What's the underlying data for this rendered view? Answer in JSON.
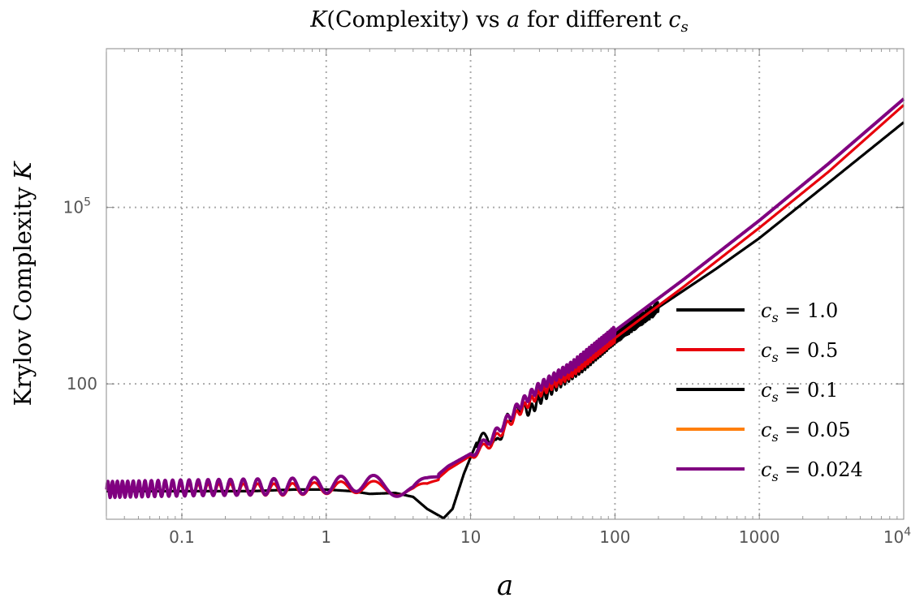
{
  "chart_data": {
    "type": "line",
    "title": {
      "main": "K",
      "paren": "(Complexity) vs ",
      "var": "a",
      "rest": " for different ",
      "sym": "c",
      "sub": "s"
    },
    "xlabel": "a",
    "ylabel": {
      "text": "Krylov Complexity ",
      "sym": "K"
    },
    "x_scale": "log",
    "y_scale": "log",
    "xlim": [
      0.03,
      10000
    ],
    "ylim": [
      0.5,
      50000000
    ],
    "x_ticks": [
      {
        "value": 0.1,
        "label": "0.1"
      },
      {
        "value": 1,
        "label": "1"
      },
      {
        "value": 10,
        "label": "10"
      },
      {
        "value": 100,
        "label": "100"
      },
      {
        "value": 1000,
        "label": "1000"
      },
      {
        "value": 10000,
        "label": "10",
        "sup": "4"
      }
    ],
    "y_ticks": [
      {
        "value": 100,
        "label": "100"
      },
      {
        "value": 100000,
        "label": "10",
        "sup": "5"
      }
    ],
    "grid": true,
    "legend_position": "right",
    "series": [
      {
        "name": "c_s = 1.0",
        "label_sym": "c",
        "label_sub": "s",
        "label_val": " = 1.0",
        "color": "#000000",
        "points": [
          [
            0.03,
            1.5
          ],
          [
            0.1,
            1.5
          ],
          [
            0.3,
            1.5
          ],
          [
            0.6,
            1.6
          ],
          [
            1.0,
            1.6
          ],
          [
            1.5,
            1.5
          ],
          [
            2.0,
            1.35
          ],
          [
            3.0,
            1.4
          ],
          [
            4.0,
            1.2
          ],
          [
            5.0,
            0.75
          ],
          [
            6.5,
            0.52
          ],
          [
            7.5,
            0.75
          ],
          [
            9.0,
            3.0
          ],
          [
            11.0,
            10.0
          ],
          [
            13.0,
            13.0
          ],
          [
            15.0,
            9.0
          ],
          [
            18.0,
            25.0
          ],
          [
            22.0,
            40.0
          ],
          [
            26.0,
            35.0
          ],
          [
            30.0,
            55.0
          ],
          [
            40.0,
            100.0
          ],
          [
            60.0,
            200.0
          ],
          [
            100.0,
            600.0
          ],
          [
            200.0,
            2000.0
          ],
          [
            500.0,
            9000.0
          ],
          [
            1000.0,
            30000.0
          ],
          [
            3000.0,
            260000.0
          ],
          [
            10000.0,
            2800000.0
          ]
        ],
        "osc": [
          {
            "a1": 11,
            "a2": 200,
            "amp": 0.38,
            "period": 0.07
          }
        ]
      },
      {
        "name": "c_s = 0.5",
        "label_sym": "c",
        "label_sub": "s",
        "label_val": " = 0.5",
        "color": "#e8000b",
        "points": [
          [
            0.03,
            1.6
          ],
          [
            0.1,
            1.6
          ],
          [
            0.5,
            1.6
          ],
          [
            1.0,
            1.7
          ],
          [
            2.0,
            1.8
          ],
          [
            3.0,
            1.6
          ],
          [
            4.0,
            1.45
          ],
          [
            5.0,
            1.7
          ],
          [
            7.0,
            3.5
          ],
          [
            10.0,
            6.0
          ],
          [
            14.0,
            10.0
          ],
          [
            18.0,
            20.0
          ],
          [
            22.0,
            35.0
          ],
          [
            30.0,
            70.0
          ],
          [
            50.0,
            150.0
          ],
          [
            100.0,
            600.0
          ],
          [
            300.0,
            4500.0
          ],
          [
            1000.0,
            45000.0
          ],
          [
            3000.0,
            400000.0
          ],
          [
            10000.0,
            5500000.0
          ]
        ],
        "osc": [
          {
            "a1": 0.03,
            "a2": 6,
            "amp": 0.4,
            "period": 0.1
          },
          {
            "a1": 10,
            "a2": 100,
            "amp": 0.28,
            "period": 0.07
          }
        ]
      },
      {
        "name": "c_s = 0.1",
        "label_sym": "c",
        "label_sub": "s",
        "label_val": " = 0.1",
        "color": "#000000",
        "points": [],
        "osc": []
      },
      {
        "name": "c_s = 0.05",
        "label_sym": "c",
        "label_sub": "s",
        "label_val": " = 0.05",
        "color": "#ff7f0e",
        "points": [],
        "osc": []
      },
      {
        "name": "c_s = 0.024",
        "label_sym": "c",
        "label_sub": "s",
        "label_val": " = 0.024",
        "color": "#800080",
        "points": [
          [
            0.03,
            1.6
          ],
          [
            0.1,
            1.7
          ],
          [
            0.5,
            1.8
          ],
          [
            1.0,
            1.9
          ],
          [
            2.0,
            2.1
          ],
          [
            3.0,
            1.7
          ],
          [
            4.0,
            1.45
          ],
          [
            5.0,
            2.0
          ],
          [
            7.0,
            4.0
          ],
          [
            10.0,
            6.5
          ],
          [
            14.0,
            12.0
          ],
          [
            18.0,
            25.0
          ],
          [
            22.0,
            45.0
          ],
          [
            30.0,
            90.0
          ],
          [
            50.0,
            200.0
          ],
          [
            100.0,
            800.0
          ],
          [
            300.0,
            6000.0
          ],
          [
            1000.0,
            60000.0
          ],
          [
            3000.0,
            550000.0
          ],
          [
            10000.0,
            7000000.0
          ]
        ],
        "osc": [
          {
            "a1": 0.03,
            "a2": 6,
            "amp": 0.55,
            "period": 0.1
          },
          {
            "a1": 10,
            "a2": 100,
            "amp": 0.3,
            "period": 0.07
          }
        ]
      }
    ]
  }
}
